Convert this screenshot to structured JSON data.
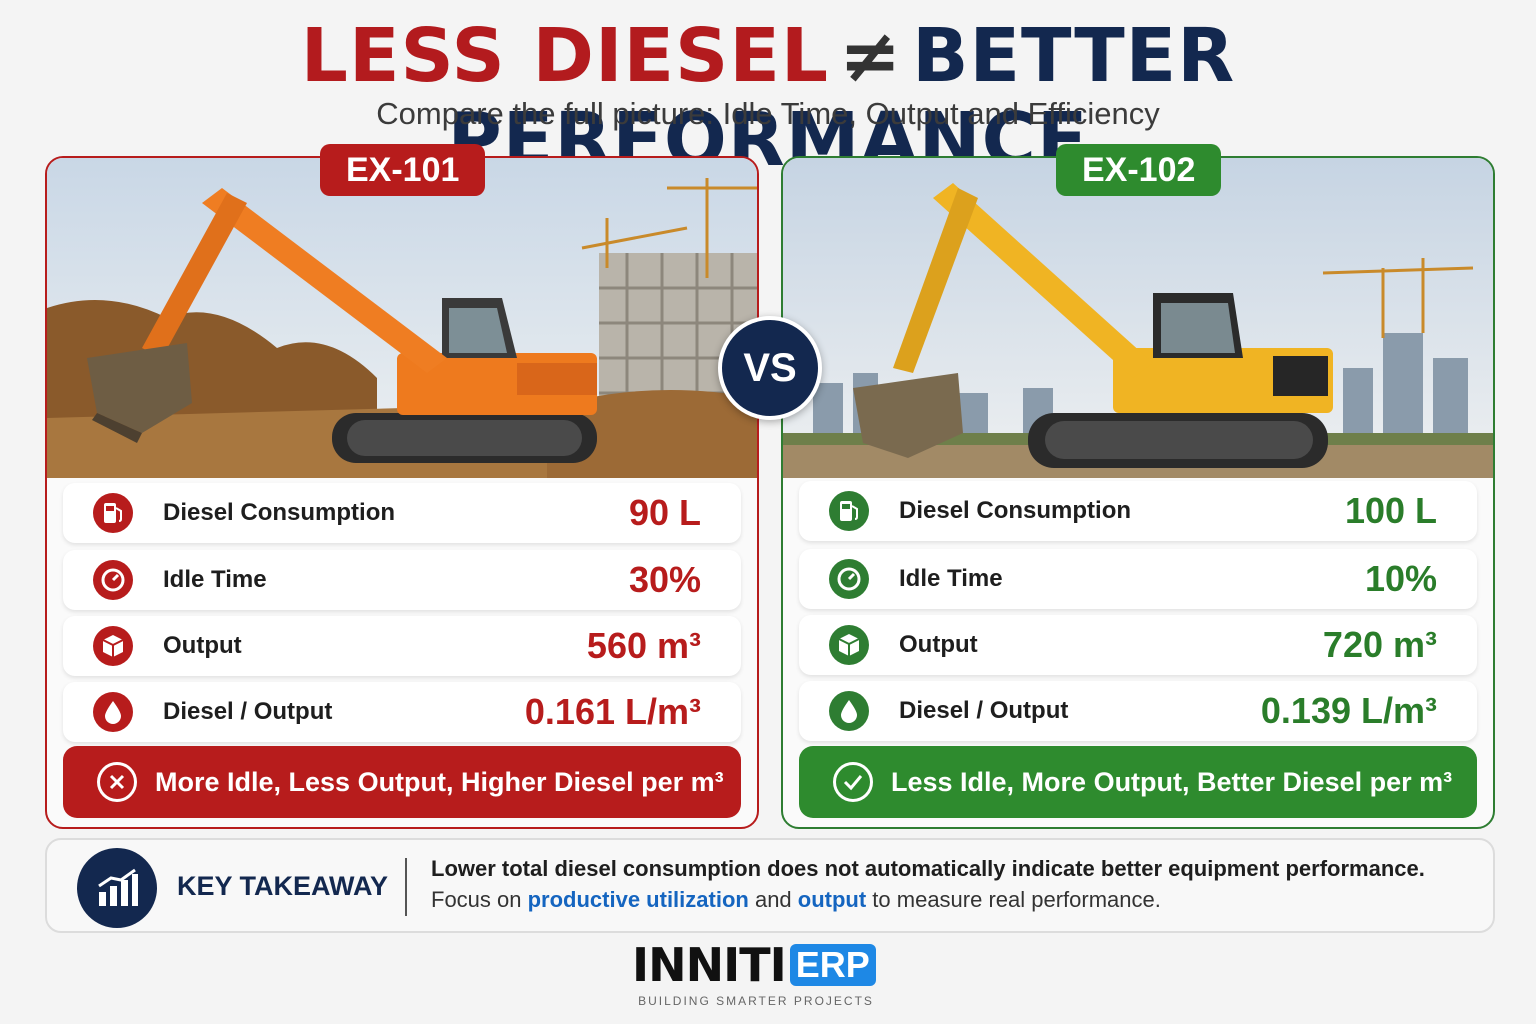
{
  "headline": {
    "part1": "LESS DIESEL",
    "symbol": "≠",
    "part2": "BETTER PERFORMANCE"
  },
  "subtitle": "Compare the full picture: Idle Time, Output and Efficiency",
  "vs_label": "VS",
  "colors": {
    "red": "#b71c1c",
    "green": "#2e7d32",
    "navy": "#13284f",
    "link_blue": "#1565c0"
  },
  "machines": [
    {
      "id": "EX-101",
      "color": "orange",
      "metrics": [
        {
          "icon": "fuel-pump-icon",
          "label": "Diesel Consumption",
          "value": "90 L"
        },
        {
          "icon": "gauge-icon",
          "label": "Idle Time",
          "value": "30%"
        },
        {
          "icon": "cube-icon",
          "label": "Output",
          "value": "560 m³"
        },
        {
          "icon": "droplet-icon",
          "label": "Diesel / Output",
          "value": "0.161 L/m³"
        }
      ],
      "verdict_icon": "x-circle-icon",
      "verdict": "More Idle, Less Output, Higher Diesel per m³"
    },
    {
      "id": "EX-102",
      "color": "yellow",
      "metrics": [
        {
          "icon": "fuel-pump-icon",
          "label": "Diesel Consumption",
          "value": "100 L"
        },
        {
          "icon": "gauge-icon",
          "label": "Idle Time",
          "value": "10%"
        },
        {
          "icon": "cube-icon",
          "label": "Output",
          "value": "720 m³"
        },
        {
          "icon": "droplet-icon",
          "label": "Diesel / Output",
          "value": "0.139 L/m³"
        }
      ],
      "verdict_icon": "check-circle-icon",
      "verdict": "Less Idle, More Output, Better Diesel per m³"
    }
  ],
  "takeaway": {
    "icon": "bar-chart-icon",
    "title": "KEY TAKEAWAY",
    "line1": "Lower total diesel consumption does not automatically indicate better equipment performance.",
    "line2_a": "Focus on ",
    "line2_link1": "productive utilization",
    "line2_b": " and ",
    "line2_link2": "output",
    "line2_c": " to measure real performance."
  },
  "brand": {
    "name_part1": "INNITI",
    "name_part2": "ERP",
    "tagline": "BUILDING SMARTER PROJECTS"
  }
}
